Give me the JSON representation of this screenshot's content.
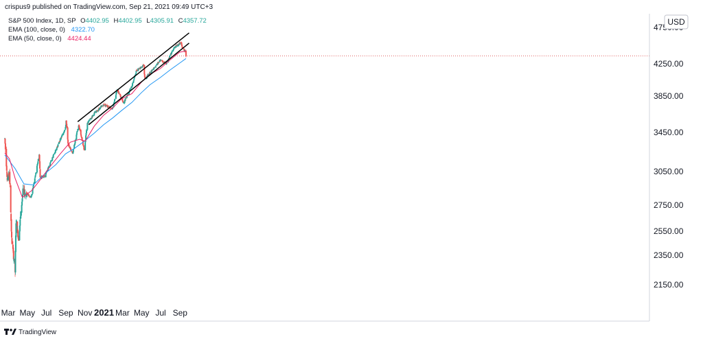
{
  "header": {
    "publish_line": "crispus9 published on TradingView.com, Sep 21, 2021 09:49 UTC+3"
  },
  "legend": {
    "symbol": "S&P 500 Index, 1D, SP",
    "ohlc": [
      {
        "label": "O",
        "value": "4402.95"
      },
      {
        "label": "H",
        "value": "4402.95"
      },
      {
        "label": "L",
        "value": "4305.91"
      },
      {
        "label": "C",
        "value": "4357.72"
      }
    ],
    "indicators": [
      {
        "label": "EMA (100, close, 0)",
        "value": "4322.70",
        "color": "#2196f3"
      },
      {
        "label": "EMA (50, close, 0)",
        "value": "4424.44",
        "color": "#e91e63"
      }
    ]
  },
  "footer": {
    "brand": "TradingView"
  },
  "chart_data": {
    "type": "candlestick",
    "currency": "USD",
    "y_axis_ticks": [
      "4250.00",
      "3850.00",
      "3450.00",
      "3050.00",
      "2750.00",
      "2550.00",
      "2350.00",
      "2150.00"
    ],
    "y_axis_partial_tick": "4750.00",
    "x_axis_ticks": [
      {
        "label": "Mar"
      },
      {
        "label": "May"
      },
      {
        "label": "Jul"
      },
      {
        "label": "Sep"
      },
      {
        "label": "Nov"
      },
      {
        "label": "2021",
        "bold": true
      },
      {
        "label": "Mar"
      },
      {
        "label": "May"
      },
      {
        "label": "Jul"
      },
      {
        "label": "Sep"
      }
    ],
    "price_anchors": [
      [
        "2020-02-19",
        3385
      ],
      [
        "2020-02-27",
        2980
      ],
      [
        "2020-03-05",
        3020
      ],
      [
        "2020-03-12",
        2480
      ],
      [
        "2020-03-16",
        2390
      ],
      [
        "2020-03-23",
        2237
      ],
      [
        "2020-03-26",
        2630
      ],
      [
        "2020-04-03",
        2490
      ],
      [
        "2020-04-17",
        2870
      ],
      [
        "2020-05-04",
        2840
      ],
      [
        "2020-05-13",
        2820
      ],
      [
        "2020-05-29",
        3045
      ],
      [
        "2020-06-08",
        3230
      ],
      [
        "2020-06-11",
        3000
      ],
      [
        "2020-06-26",
        3010
      ],
      [
        "2020-07-31",
        3270
      ],
      [
        "2020-08-31",
        3500
      ],
      [
        "2020-09-02",
        3580
      ],
      [
        "2020-09-08",
        3330
      ],
      [
        "2020-09-23",
        3240
      ],
      [
        "2020-10-12",
        3530
      ],
      [
        "2020-10-30",
        3270
      ],
      [
        "2020-11-09",
        3550
      ],
      [
        "2020-12-01",
        3660
      ],
      [
        "2020-12-31",
        3756
      ],
      [
        "2021-01-29",
        3714
      ],
      [
        "2021-02-12",
        3934
      ],
      [
        "2021-03-04",
        3768
      ],
      [
        "2021-03-31",
        3973
      ],
      [
        "2021-04-15",
        4170
      ],
      [
        "2021-05-07",
        4232
      ],
      [
        "2021-05-12",
        4063
      ],
      [
        "2021-06-30",
        4298
      ],
      [
        "2021-07-19",
        4258
      ],
      [
        "2021-08-13",
        4468
      ],
      [
        "2021-09-02",
        4537
      ],
      [
        "2021-09-10",
        4458
      ],
      [
        "2021-09-17",
        4432
      ],
      [
        "2021-09-20",
        4358
      ]
    ],
    "ema100": [
      [
        "2020-02-19",
        3220
      ],
      [
        "2020-03-23",
        3080
      ],
      [
        "2020-04-20",
        2940
      ],
      [
        "2020-05-20",
        2930
      ],
      [
        "2020-06-30",
        3040
      ],
      [
        "2020-07-31",
        3120
      ],
      [
        "2020-08-31",
        3230
      ],
      [
        "2020-09-30",
        3290
      ],
      [
        "2020-10-30",
        3360
      ],
      [
        "2020-11-30",
        3440
      ],
      [
        "2020-12-31",
        3535
      ],
      [
        "2021-01-29",
        3610
      ],
      [
        "2021-02-26",
        3690
      ],
      [
        "2021-03-31",
        3780
      ],
      [
        "2021-04-30",
        3890
      ],
      [
        "2021-05-28",
        3990
      ],
      [
        "2021-06-30",
        4080
      ],
      [
        "2021-07-30",
        4170
      ],
      [
        "2021-08-31",
        4260
      ],
      [
        "2021-09-20",
        4322.7
      ]
    ],
    "ema50": [
      [
        "2020-02-19",
        3240
      ],
      [
        "2020-03-05",
        3180
      ],
      [
        "2020-03-23",
        2990
      ],
      [
        "2020-04-15",
        2820
      ],
      [
        "2020-05-15",
        2880
      ],
      [
        "2020-06-15",
        2990
      ],
      [
        "2020-07-15",
        3110
      ],
      [
        "2020-08-14",
        3230
      ],
      [
        "2020-09-15",
        3350
      ],
      [
        "2020-10-15",
        3380
      ],
      [
        "2020-11-02",
        3360
      ],
      [
        "2020-12-01",
        3520
      ],
      [
        "2020-12-31",
        3640
      ],
      [
        "2021-01-29",
        3720
      ],
      [
        "2021-02-26",
        3820
      ],
      [
        "2021-03-31",
        3880
      ],
      [
        "2021-04-30",
        4020
      ],
      [
        "2021-05-28",
        4120
      ],
      [
        "2021-06-30",
        4190
      ],
      [
        "2021-07-30",
        4300
      ],
      [
        "2021-08-31",
        4410
      ],
      [
        "2021-09-20",
        4424.44
      ]
    ],
    "trendlines": [
      {
        "name": "upper",
        "from": [
          "2020-10-09",
          3568
        ],
        "to": [
          "2021-09-30",
          4675
        ]
      },
      {
        "name": "lower",
        "from": [
          "2020-11-13",
          3535
        ],
        "to": [
          "2021-09-30",
          4535
        ]
      }
    ],
    "reference_line_value": 4358
  }
}
